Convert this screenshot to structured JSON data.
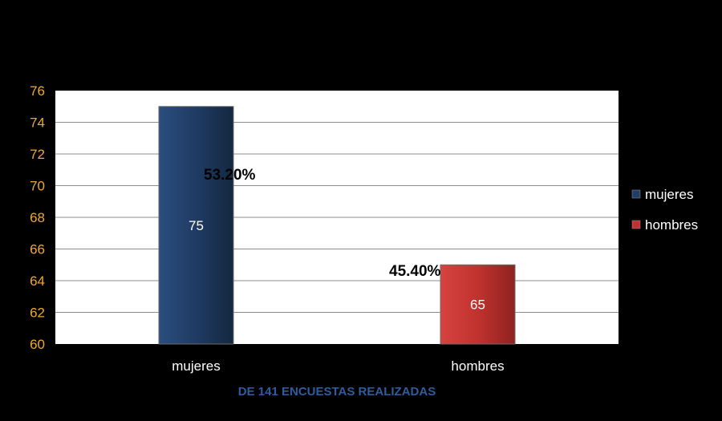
{
  "chart_data": {
    "type": "bar",
    "categories": [
      "mujeres",
      "hombres"
    ],
    "series": [
      {
        "name": "mujeres",
        "values": [
          75,
          null
        ],
        "color": "#203E66",
        "data_labels": [
          "75",
          null
        ]
      },
      {
        "name": "hombres",
        "values": [
          null,
          65
        ],
        "color": "#C0322F",
        "data_labels": [
          null,
          "65"
        ]
      }
    ],
    "ylim": [
      60,
      76
    ],
    "yticks": [
      "60",
      "62",
      "64",
      "66",
      "68",
      "70",
      "72",
      "74",
      "76"
    ],
    "grid": true,
    "legend": "right",
    "annotations": [
      "53.20%",
      "45.40%"
    ],
    "caption": "DE 141 ENCUESTAS REALIZADAS",
    "tick_color": "#F0A830",
    "caption_color": "#2E5C9E"
  }
}
